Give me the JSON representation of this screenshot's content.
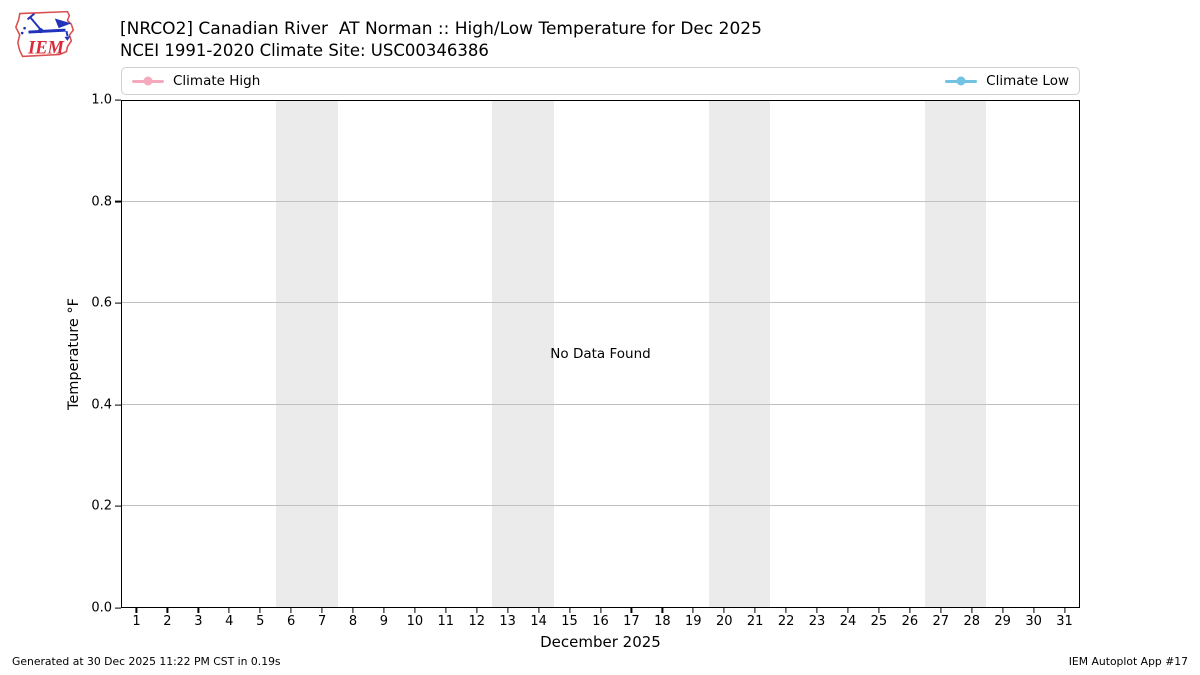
{
  "header": {
    "logo_text": "IEM",
    "title": "[NRCO2] Canadian River  AT Norman :: High/Low Temperature for Dec 2025",
    "subtitle": "NCEI 1991-2020 Climate Site: USC00346386"
  },
  "legend": {
    "items": [
      {
        "label": "Climate High",
        "color": "#f5a9bc"
      },
      {
        "label": "Climate Low",
        "color": "#72c3e3"
      }
    ]
  },
  "chart_data": {
    "type": "line",
    "title": "[NRCO2] Canadian River  AT Norman :: High/Low Temperature for Dec 2025",
    "subtitle": "NCEI 1991-2020 Climate Site: USC00346386",
    "xlabel": "December 2025",
    "ylabel": "Temperature °F",
    "xlim": [
      0.5,
      31.5
    ],
    "ylim": [
      0.0,
      1.0
    ],
    "x_ticks": [
      1,
      2,
      3,
      4,
      5,
      6,
      7,
      8,
      9,
      10,
      11,
      12,
      13,
      14,
      15,
      16,
      17,
      18,
      19,
      20,
      21,
      22,
      23,
      24,
      25,
      26,
      27,
      28,
      29,
      30,
      31
    ],
    "y_ticks": [
      "0.0",
      "0.2",
      "0.4",
      "0.6",
      "0.8",
      "1.0"
    ],
    "grid": "horizontal",
    "legend_position": "top",
    "weekend_bands": [
      [
        5.5,
        7.5
      ],
      [
        12.5,
        14.5
      ],
      [
        19.5,
        21.5
      ],
      [
        26.5,
        28.5
      ]
    ],
    "series": [
      {
        "name": "Climate High",
        "color": "#f5a9bc",
        "x": [],
        "values": []
      },
      {
        "name": "Climate Low",
        "color": "#72c3e3",
        "x": [],
        "values": []
      }
    ],
    "no_data_text": "No Data Found"
  },
  "footer": {
    "generated": "Generated at 30 Dec 2025 11:22 PM CST in 0.19s",
    "app": "IEM Autoplot App #17"
  }
}
